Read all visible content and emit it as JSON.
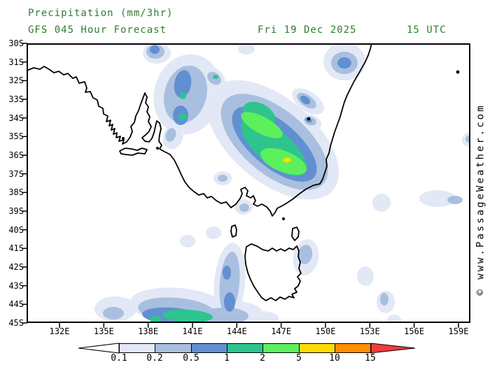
{
  "header": {
    "title": "Precipitation (mm/3hr)",
    "model_line": "GFS 045 Hour Forecast",
    "valid_date": "Fri 19 Dec 2025",
    "valid_time": "15 UTC",
    "text_color": "#2e7d2e"
  },
  "map": {
    "lat_labels": [
      "30S",
      "31S",
      "32S",
      "33S",
      "34S",
      "35S",
      "36S",
      "37S",
      "38S",
      "39S",
      "40S",
      "41S",
      "42S",
      "43S",
      "44S",
      "45S"
    ],
    "lon_labels": [
      "132E",
      "135E",
      "138E",
      "141E",
      "144E",
      "147E",
      "150E",
      "153E",
      "156E",
      "159E"
    ]
  },
  "watermark": {
    "text": "© www.PassageWeather.com"
  },
  "legend": {
    "labels": [
      "0.1",
      "0.2",
      "0.5",
      "1",
      "2",
      "5",
      "10",
      "15"
    ],
    "colors": [
      {
        "name": "level-0.1",
        "hex": "#e2e8f5"
      },
      {
        "name": "level-0.2",
        "hex": "#a9bfdf"
      },
      {
        "name": "level-0.5",
        "hex": "#6190d2"
      },
      {
        "name": "level-1",
        "hex": "#2ec48e"
      },
      {
        "name": "level-2",
        "hex": "#5cf05c"
      },
      {
        "name": "level-5",
        "hex": "#ffdc00"
      },
      {
        "name": "level-10",
        "hex": "#ff9000"
      },
      {
        "name": "level-15-plus",
        "hex": "#f23c3c"
      }
    ]
  }
}
